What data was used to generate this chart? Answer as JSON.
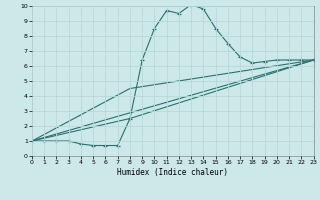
{
  "title": "",
  "xlabel": "Humidex (Indice chaleur)",
  "xlim": [
    0,
    23
  ],
  "ylim": [
    0,
    10
  ],
  "xticks": [
    0,
    1,
    2,
    3,
    4,
    5,
    6,
    7,
    8,
    9,
    10,
    11,
    12,
    13,
    14,
    15,
    16,
    17,
    18,
    19,
    20,
    21,
    22,
    23
  ],
  "yticks": [
    0,
    1,
    2,
    3,
    4,
    5,
    6,
    7,
    8,
    9,
    10
  ],
  "bg_color": "#cce8e8",
  "grid_color": "#b8d8d8",
  "line_color": "#2a7070",
  "curve1_x": [
    0,
    1,
    2,
    3,
    4,
    5,
    6,
    7,
    8,
    9,
    10,
    11,
    12,
    13,
    14,
    15,
    16,
    17,
    18,
    19,
    20,
    21,
    22,
    23
  ],
  "curve1_y": [
    1,
    1,
    1,
    1,
    0.8,
    0.7,
    0.7,
    0.7,
    2.5,
    6.4,
    8.5,
    9.7,
    9.5,
    10.1,
    9.8,
    8.5,
    7.5,
    6.6,
    6.2,
    6.3,
    6.4,
    6.4,
    6.4,
    6.4
  ],
  "curve2_x": [
    0,
    8,
    23
  ],
  "curve2_y": [
    1,
    2.5,
    6.4
  ],
  "curve3_x": [
    0,
    8,
    23
  ],
  "curve3_y": [
    1,
    4.5,
    6.4
  ],
  "curve4_x": [
    0,
    23
  ],
  "curve4_y": [
    1,
    6.4
  ],
  "figsize": [
    3.2,
    2.0
  ],
  "dpi": 100
}
